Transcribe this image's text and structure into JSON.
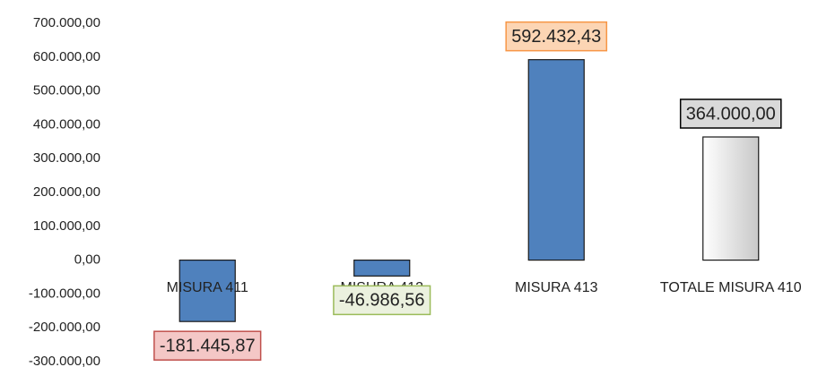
{
  "chart_data": {
    "type": "bar",
    "categories": [
      "MISURA 411",
      "MISURA 412",
      "MISURA 413",
      "TOTALE MISURA 410"
    ],
    "values": [
      -181445.87,
      -46986.56,
      592432.43,
      364000
    ],
    "value_labels": [
      "-181.445,87",
      "-46.986,56",
      "592.432,43",
      "364.000,00"
    ],
    "colors": [
      "#4f81bd",
      "#4f81bd",
      "#4f81bd",
      "#c8c8c8"
    ],
    "label_fills": [
      "#f4c7c6",
      "#ebf1de",
      "#fcd5b4",
      "#d9d9d9"
    ],
    "label_borders": [
      "#c0504d",
      "#9bbb59",
      "#f79646",
      "#000000"
    ],
    "ylim": [
      -300000,
      700000
    ],
    "yticks": [
      {
        "value": -300000,
        "label": "-300.000,00"
      },
      {
        "value": -200000,
        "label": "-200.000,00"
      },
      {
        "value": -100000,
        "label": "-100.000,00"
      },
      {
        "value": 0,
        "label": "0,00"
      },
      {
        "value": 100000,
        "label": "100.000,00"
      },
      {
        "value": 200000,
        "label": "200.000,00"
      },
      {
        "value": 300000,
        "label": "300.000,00"
      },
      {
        "value": 400000,
        "label": "400.000,00"
      },
      {
        "value": 500000,
        "label": "500.000,00"
      },
      {
        "value": 600000,
        "label": "600.000,00"
      },
      {
        "value": 700000,
        "label": "700.000,00"
      }
    ],
    "grid": false
  }
}
